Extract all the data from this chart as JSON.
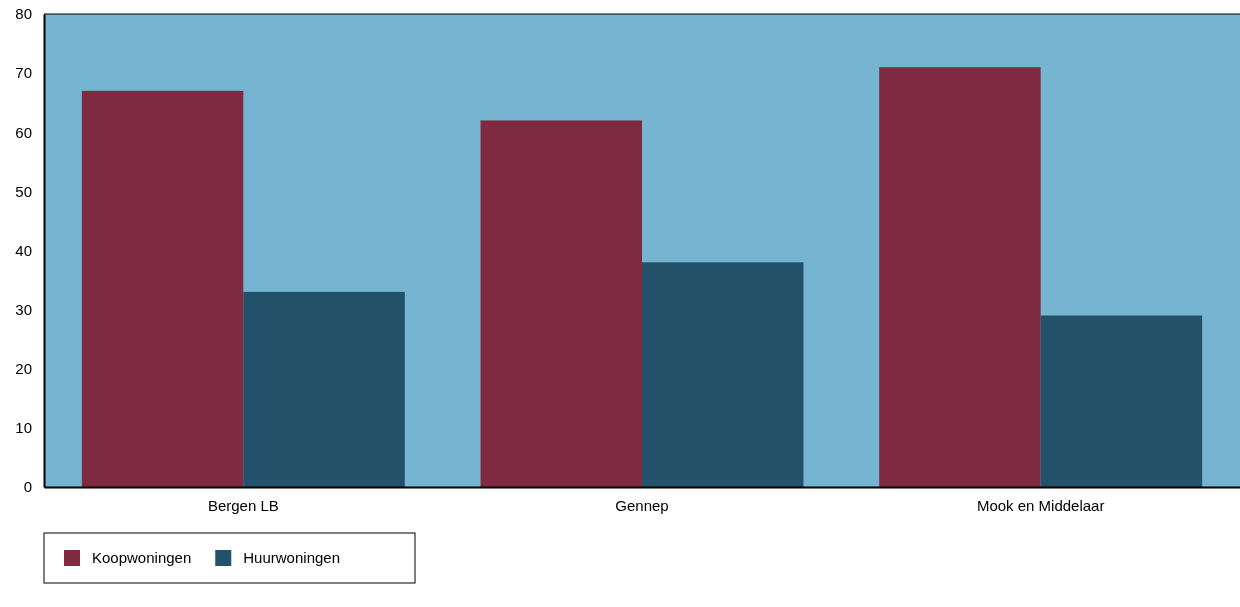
{
  "chart_data": {
    "type": "bar",
    "categories": [
      "Bergen LB",
      "Gennep",
      "Mook en Middelaar"
    ],
    "series": [
      {
        "name": "Koopwoningen",
        "color": "#7f2a41",
        "values": [
          67,
          62,
          71
        ]
      },
      {
        "name": "Huurwoningen",
        "color": "#235169",
        "values": [
          33,
          38,
          29
        ]
      }
    ],
    "ylim": [
      0,
      80
    ],
    "yticks": [
      0,
      10,
      20,
      30,
      40,
      50,
      60,
      70,
      80
    ],
    "grid": false,
    "legend": "bottom left"
  }
}
